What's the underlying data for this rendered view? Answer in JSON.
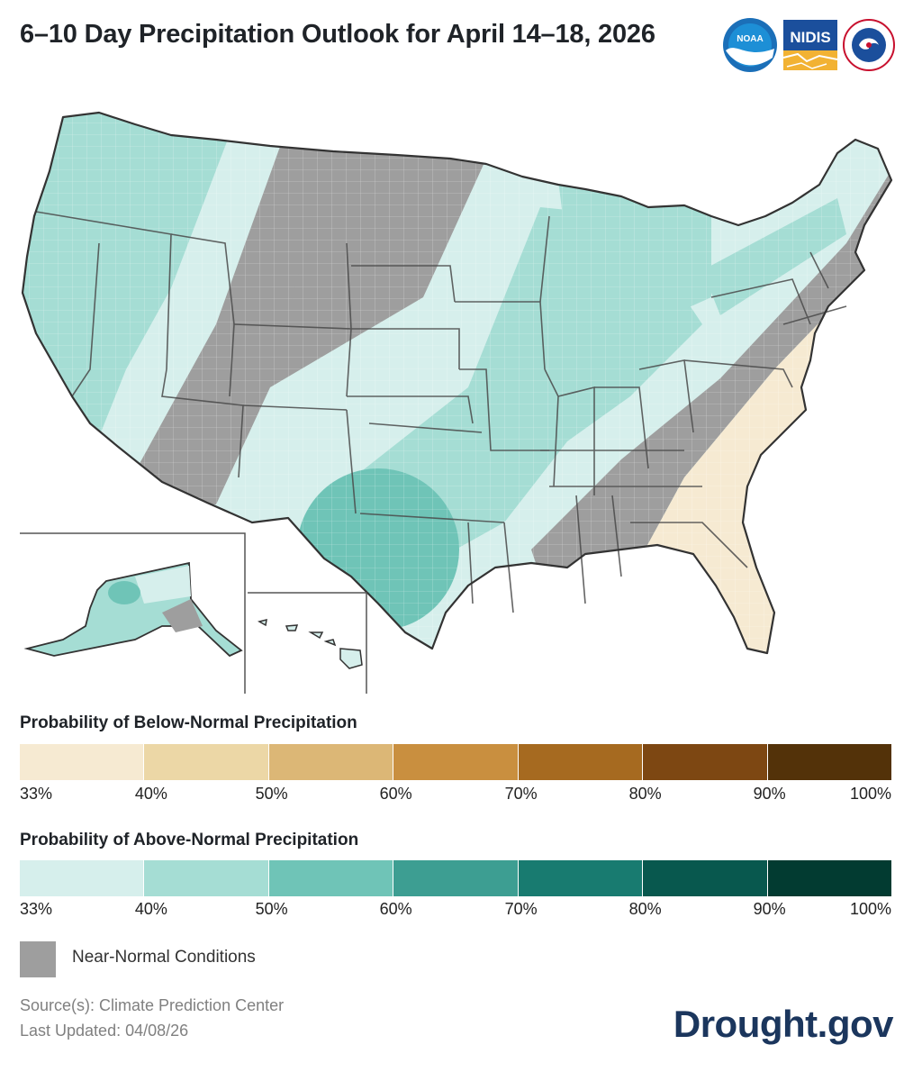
{
  "title": "6–10 Day Precipitation Outlook for April 14–18, 2026",
  "logos": {
    "noaa": "NOAA",
    "nidis": "NIDIS",
    "nws": "NATIONAL WEATHER SERVICE"
  },
  "legend": {
    "below": {
      "title": "Probability of Below-Normal Precipitation",
      "colors": [
        "#f6ead2",
        "#ecd7a6",
        "#dcb776",
        "#c98f3f",
        "#a66a20",
        "#7d4712",
        "#533209"
      ]
    },
    "above": {
      "title": "Probability of Above-Normal Precipitation",
      "colors": [
        "#d6efec",
        "#a5ddd4",
        "#6fc4b7",
        "#3d9e92",
        "#187b70",
        "#08584e",
        "#023b31"
      ]
    },
    "ticks": [
      "33%",
      "40%",
      "50%",
      "60%",
      "70%",
      "80%",
      "90%",
      "100%"
    ],
    "near_normal": {
      "label": "Near-Normal Conditions",
      "color": "#9e9e9e"
    }
  },
  "map_colors": {
    "above_33": "#d6efec",
    "above_40": "#a5ddd4",
    "above_50": "#6fc4b7",
    "below_33": "#f6ead2",
    "near_normal": "#9e9e9e"
  },
  "footer": {
    "source": "Source(s): Climate Prediction Center",
    "updated": "Last Updated: 04/08/26",
    "brand": "Drought.gov"
  }
}
